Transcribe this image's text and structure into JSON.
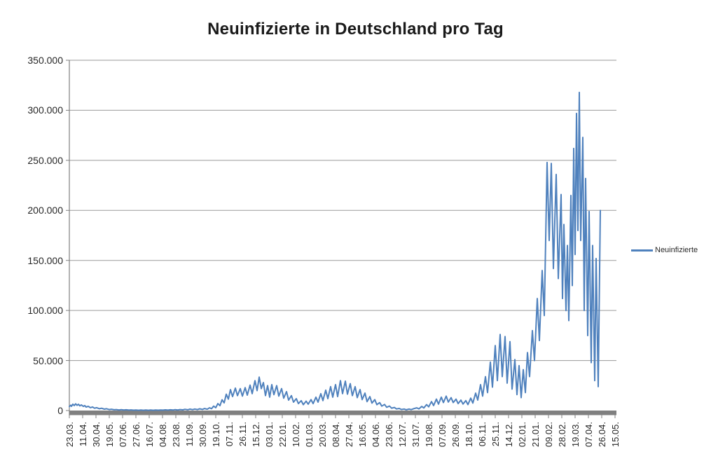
{
  "title": "Neuinfizierte in Deutschland pro Tag",
  "legend": {
    "label": "Neuinfizierte"
  },
  "colors": {
    "series": "#4F81BD",
    "grid": "#9A9A9A",
    "axis": "#808080",
    "text": "#262626",
    "title": "#1a1a1a"
  },
  "chart_data": {
    "type": "line",
    "title": "Neuinfizierte in Deutschland pro Tag",
    "xlabel": "",
    "ylabel": "",
    "legend_entries": [
      "Neuinfizierte"
    ],
    "legend_position": "right",
    "grid": "horizontal",
    "ylim": [
      0,
      350000
    ],
    "y_tick_values": [
      0,
      50000,
      100000,
      150000,
      200000,
      250000,
      300000,
      350000
    ],
    "y_tick_labels": [
      "0",
      "50.000",
      "100.000",
      "150.000",
      "200.000",
      "250.000",
      "300.000",
      "350.000"
    ],
    "x_tick_interval_days": 19,
    "x_domain_days": 781,
    "x_tick_labels": [
      "23.03.",
      "11.04.",
      "30.04.",
      "19.05.",
      "07.06.",
      "27.06.",
      "16.07.",
      "04.08.",
      "23.08.",
      "11.09.",
      "30.09.",
      "19.10.",
      "07.11.",
      "26.11.",
      "15.12.",
      "03.01.",
      "22.01.",
      "10.02.",
      "01.03.",
      "20.03.",
      "08.04.",
      "27.04.",
      "16.05.",
      "04.06.",
      "23.06.",
      "12.07.",
      "31.07.",
      "19.08.",
      "07.09.",
      "26.09.",
      "18.10.",
      "06.11.",
      "25.11.",
      "14.12.",
      "02.01.",
      "21.01.",
      "09.02.",
      "28.02.",
      "19.03.",
      "07.04.",
      "26.04.",
      "15.05."
    ],
    "series": [
      {
        "name": "Neuinfizierte",
        "note": "daily new infections, day 0 = 23.03.2020; points are [day_index, value] weekly peak/trough anchors read from the plot",
        "points": [
          [
            0,
            4000
          ],
          [
            2,
            5300
          ],
          [
            3,
            4200
          ],
          [
            5,
            6400
          ],
          [
            7,
            5000
          ],
          [
            9,
            6700
          ],
          [
            11,
            5200
          ],
          [
            13,
            6200
          ],
          [
            15,
            4700
          ],
          [
            17,
            5700
          ],
          [
            20,
            4100
          ],
          [
            22,
            5000
          ],
          [
            24,
            3500
          ],
          [
            27,
            4300
          ],
          [
            30,
            2900
          ],
          [
            33,
            3600
          ],
          [
            36,
            2300
          ],
          [
            39,
            2900
          ],
          [
            43,
            1800
          ],
          [
            46,
            2300
          ],
          [
            50,
            1400
          ],
          [
            53,
            1800
          ],
          [
            57,
            1000
          ],
          [
            60,
            1300
          ],
          [
            64,
            750
          ],
          [
            67,
            1000
          ],
          [
            71,
            550
          ],
          [
            74,
            850
          ],
          [
            78,
            480
          ],
          [
            81,
            750
          ],
          [
            85,
            400
          ],
          [
            88,
            640
          ],
          [
            92,
            350
          ],
          [
            95,
            580
          ],
          [
            99,
            300
          ],
          [
            102,
            520
          ],
          [
            106,
            290
          ],
          [
            109,
            500
          ],
          [
            113,
            280
          ],
          [
            116,
            490
          ],
          [
            120,
            300
          ],
          [
            123,
            540
          ],
          [
            127,
            340
          ],
          [
            130,
            590
          ],
          [
            134,
            390
          ],
          [
            137,
            680
          ],
          [
            141,
            440
          ],
          [
            144,
            780
          ],
          [
            148,
            490
          ],
          [
            151,
            880
          ],
          [
            155,
            540
          ],
          [
            158,
            980
          ],
          [
            162,
            680
          ],
          [
            165,
            1250
          ],
          [
            169,
            780
          ],
          [
            172,
            1450
          ],
          [
            176,
            880
          ],
          [
            179,
            1550
          ],
          [
            183,
            980
          ],
          [
            186,
            1750
          ],
          [
            190,
            1150
          ],
          [
            193,
            2050
          ],
          [
            197,
            1350
          ],
          [
            200,
            2700
          ],
          [
            203,
            1900
          ],
          [
            206,
            4400
          ],
          [
            209,
            2900
          ],
          [
            212,
            6900
          ],
          [
            215,
            4800
          ],
          [
            218,
            10800
          ],
          [
            221,
            7700
          ],
          [
            224,
            16400
          ],
          [
            227,
            11400
          ],
          [
            230,
            20900
          ],
          [
            233,
            13900
          ],
          [
            237,
            22400
          ],
          [
            240,
            14900
          ],
          [
            244,
            21900
          ],
          [
            247,
            14400
          ],
          [
            251,
            22900
          ],
          [
            254,
            15400
          ],
          [
            258,
            25400
          ],
          [
            261,
            16900
          ],
          [
            265,
            29900
          ],
          [
            268,
            19900
          ],
          [
            271,
            33400
          ],
          [
            274,
            21900
          ],
          [
            277,
            27900
          ],
          [
            280,
            14900
          ],
          [
            283,
            24900
          ],
          [
            286,
            13400
          ],
          [
            289,
            25900
          ],
          [
            292,
            15900
          ],
          [
            296,
            24900
          ],
          [
            299,
            14400
          ],
          [
            303,
            21900
          ],
          [
            306,
            12400
          ],
          [
            310,
            18900
          ],
          [
            313,
            10400
          ],
          [
            317,
            14900
          ],
          [
            320,
            8400
          ],
          [
            324,
            11900
          ],
          [
            327,
            6900
          ],
          [
            331,
            9900
          ],
          [
            334,
            5900
          ],
          [
            338,
            9400
          ],
          [
            341,
            6400
          ],
          [
            345,
            10900
          ],
          [
            348,
            6950
          ],
          [
            352,
            13400
          ],
          [
            355,
            8400
          ],
          [
            359,
            16900
          ],
          [
            362,
            9950
          ],
          [
            366,
            20400
          ],
          [
            369,
            11900
          ],
          [
            373,
            23900
          ],
          [
            376,
            13400
          ],
          [
            380,
            25900
          ],
          [
            383,
            13900
          ],
          [
            387,
            29900
          ],
          [
            390,
            16900
          ],
          [
            394,
            29400
          ],
          [
            397,
            16400
          ],
          [
            401,
            26900
          ],
          [
            404,
            14900
          ],
          [
            408,
            23900
          ],
          [
            411,
            12900
          ],
          [
            415,
            20900
          ],
          [
            418,
            10900
          ],
          [
            422,
            17400
          ],
          [
            425,
            8900
          ],
          [
            429,
            13900
          ],
          [
            432,
            7400
          ],
          [
            436,
            10900
          ],
          [
            439,
            5900
          ],
          [
            443,
            7900
          ],
          [
            446,
            4400
          ],
          [
            450,
            6100
          ],
          [
            453,
            3300
          ],
          [
            457,
            4500
          ],
          [
            460,
            2400
          ],
          [
            464,
            3100
          ],
          [
            467,
            1600
          ],
          [
            471,
            2100
          ],
          [
            474,
            1050
          ],
          [
            478,
            1550
          ],
          [
            481,
            780
          ],
          [
            485,
            1450
          ],
          [
            488,
            880
          ],
          [
            492,
            1950
          ],
          [
            496,
            2750
          ],
          [
            499,
            1680
          ],
          [
            503,
            4150
          ],
          [
            506,
            2580
          ],
          [
            510,
            5950
          ],
          [
            513,
            3680
          ],
          [
            517,
            8950
          ],
          [
            520,
            4950
          ],
          [
            524,
            11400
          ],
          [
            527,
            6450
          ],
          [
            531,
            13400
          ],
          [
            534,
            7950
          ],
          [
            538,
            14400
          ],
          [
            541,
            8450
          ],
          [
            545,
            12900
          ],
          [
            548,
            7950
          ],
          [
            552,
            11400
          ],
          [
            555,
            6950
          ],
          [
            559,
            10400
          ],
          [
            562,
            6450
          ],
          [
            566,
            9950
          ],
          [
            569,
            5950
          ],
          [
            573,
            12400
          ],
          [
            576,
            7450
          ],
          [
            580,
            17400
          ],
          [
            583,
            10400
          ],
          [
            587,
            25900
          ],
          [
            590,
            14400
          ],
          [
            594,
            33900
          ],
          [
            597,
            17900
          ],
          [
            601,
            48400
          ],
          [
            604,
            23400
          ],
          [
            608,
            64900
          ],
          [
            611,
            29900
          ],
          [
            615,
            76000
          ],
          [
            618,
            33900
          ],
          [
            622,
            73900
          ],
          [
            625,
            27400
          ],
          [
            629,
            68900
          ],
          [
            632,
            21400
          ],
          [
            636,
            50900
          ],
          [
            639,
            15900
          ],
          [
            642,
            44900
          ],
          [
            645,
            12900
          ],
          [
            648,
            40900
          ],
          [
            651,
            17900
          ],
          [
            654,
            57900
          ],
          [
            657,
            33900
          ],
          [
            661,
            79900
          ],
          [
            664,
            49900
          ],
          [
            668,
            111900
          ],
          [
            671,
            69900
          ],
          [
            675,
            139900
          ],
          [
            678,
            94900
          ],
          [
            682,
            247900
          ],
          [
            685,
            169900
          ],
          [
            688,
            246900
          ],
          [
            691,
            141900
          ],
          [
            695,
            235900
          ],
          [
            698,
            131900
          ],
          [
            702,
            215900
          ],
          [
            704,
            111900
          ],
          [
            706,
            185900
          ],
          [
            709,
            99900
          ],
          [
            711,
            164900
          ],
          [
            713,
            89900
          ],
          [
            716,
            214900
          ],
          [
            718,
            124900
          ],
          [
            720,
            261900
          ],
          [
            722,
            155900
          ],
          [
            724,
            296900
          ],
          [
            726,
            179900
          ],
          [
            728,
            317900
          ],
          [
            730,
            169900
          ],
          [
            733,
            272900
          ],
          [
            735,
            99900
          ],
          [
            737,
            231900
          ],
          [
            740,
            74900
          ],
          [
            742,
            198900
          ],
          [
            745,
            47900
          ],
          [
            747,
            164900
          ],
          [
            750,
            29900
          ],
          [
            752,
            151900
          ],
          [
            755,
            23900
          ],
          [
            758,
            199900
          ]
        ]
      }
    ]
  }
}
